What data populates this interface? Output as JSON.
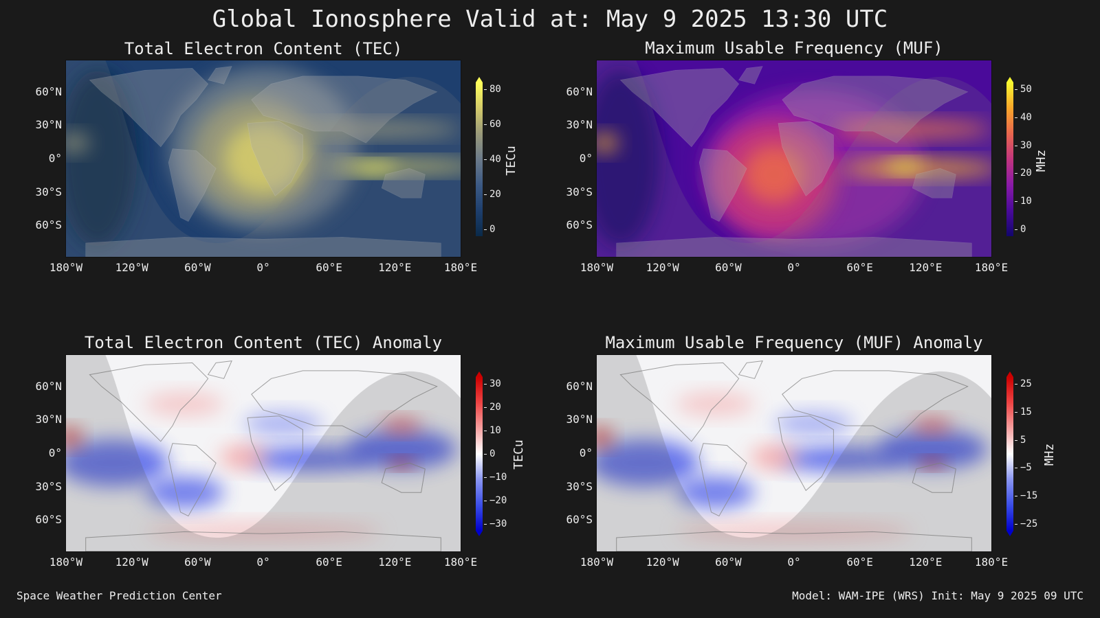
{
  "title": "Global Ionosphere Valid at: May 9 2025 13:30 UTC",
  "lat_ticks": [
    "60°N",
    "30°N",
    "0°",
    "30°S",
    "60°S"
  ],
  "lon_ticks": [
    "180°W",
    "120°W",
    "60°W",
    "0°",
    "60°E",
    "120°E",
    "180°E"
  ],
  "panels": [
    {
      "id": "tec",
      "title": "Total Electron Content (TEC)",
      "cbar_label": "TECu",
      "cbar_ticks": [
        "80",
        "60",
        "40",
        "20",
        "0"
      ],
      "colors": [
        "#0a2a4a",
        "#1e3f6e",
        "#3c5a85",
        "#6b7a8a",
        "#9a9a7a",
        "#d4cb6a",
        "#ffff5a"
      ],
      "theme": "tec"
    },
    {
      "id": "muf",
      "title": "Maximum Usable Frequency (MUF)",
      "cbar_label": "MHz",
      "cbar_ticks": [
        "50",
        "40",
        "30",
        "20",
        "10",
        "0"
      ],
      "colors": [
        "#12066e",
        "#4a0a9a",
        "#8a1aa8",
        "#c2357e",
        "#e8664e",
        "#f8a62a",
        "#f8f830"
      ],
      "theme": "muf"
    },
    {
      "id": "tec-anom",
      "title": "Total Electron Content (TEC) Anomaly",
      "cbar_label": "TECu",
      "cbar_ticks": [
        "30",
        "20",
        "10",
        "0",
        "−10",
        "−20",
        "−30"
      ],
      "colors": [
        "#0000cc",
        "#3b4ee8",
        "#8a96f2",
        "#ffffff",
        "#f5a0a0",
        "#ee4444",
        "#cc0000"
      ],
      "theme": "anom"
    },
    {
      "id": "muf-anom",
      "title": "Maximum Usable Frequency (MUF) Anomaly",
      "cbar_label": "MHz",
      "cbar_ticks": [
        "25",
        "15",
        "5",
        "−5",
        "−15",
        "−25"
      ],
      "colors": [
        "#0000cc",
        "#3b4ee8",
        "#8a96f2",
        "#ffffff",
        "#f5a0a0",
        "#ee4444",
        "#cc0000"
      ],
      "theme": "anom"
    }
  ],
  "footer_left": "Space Weather Prediction Center",
  "footer_right": "Model: WAM-IPE (WRS) Init: May 9 2025 09 UTC"
}
